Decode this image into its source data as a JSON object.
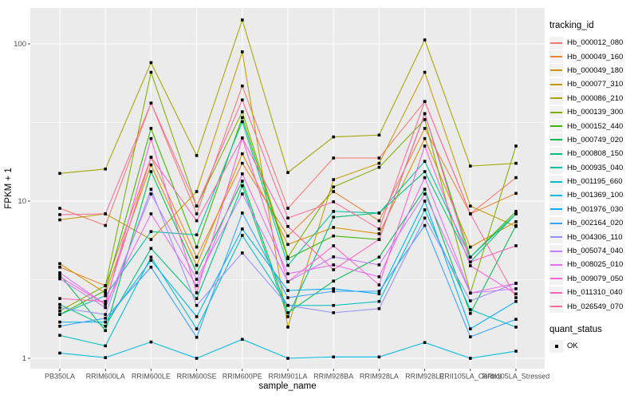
{
  "chart_data": {
    "type": "line",
    "title": "",
    "xlabel": "sample_name",
    "ylabel": "FPKM + 1",
    "y_scale": "log10",
    "ylim": [
      1,
      170
    ],
    "grid": true,
    "legend_position": "right",
    "legend_title": "tracking_id",
    "legend2": {
      "title": "quant_status",
      "items": [
        {
          "label": "OK",
          "marker": "black-square"
        }
      ]
    },
    "y_ticks": [
      {
        "v": 1,
        "label": "1"
      },
      {
        "v": 10,
        "label": "10"
      },
      {
        "v": 100,
        "label": "100"
      }
    ],
    "y_minor_ticks": [
      3.162,
      31.62
    ],
    "categories": [
      "PB350LA",
      "RRIM600LA",
      "RRIM600LE",
      "RRIM600SE",
      "RRIM600PE",
      "RRIM901LA",
      "RRIM928BA",
      "RRIM928LA",
      "RRIM928LE",
      "RRII105LA_Control",
      "RRII105LA_Stressed"
    ],
    "marker": "small-black-square",
    "series": [
      {
        "name": "Hb_000012_080",
        "color": "#F8766D",
        "values": [
          9.0,
          7.0,
          42,
          8.3,
          54,
          9.0,
          18.8,
          18.8,
          43,
          8.3,
          14.1
        ]
      },
      {
        "name": "Hb_000049_160",
        "color": "#EA8331",
        "values": [
          3.8,
          2.9,
          19,
          4.4,
          17.4,
          6.0,
          11.5,
          7.5,
          29,
          8.3,
          11.2
        ]
      },
      {
        "name": "Hb_000049_180",
        "color": "#D89000",
        "values": [
          4.0,
          2.6,
          17,
          3.9,
          20,
          5.3,
          6.8,
          6.2,
          25,
          5.1,
          7.4
        ]
      },
      {
        "name": "Hb_000077_310",
        "color": "#C49A00",
        "values": [
          7.6,
          8.3,
          5.7,
          11.5,
          89,
          1.58,
          13.7,
          17.4,
          66,
          9.3,
          6.9
        ]
      },
      {
        "name": "Hb_000086_210",
        "color": "#A3A500",
        "values": [
          15,
          16,
          76,
          19.5,
          142,
          15.2,
          25.6,
          26.3,
          106,
          16.7,
          17.4
        ]
      },
      {
        "name": "Hb_000139_300",
        "color": "#7CAE00",
        "values": [
          2.0,
          2.9,
          66,
          9.3,
          37,
          4.4,
          12.3,
          16.4,
          33,
          2.6,
          22.4
        ]
      },
      {
        "name": "Hb_000152_440",
        "color": "#39B600",
        "values": [
          1.9,
          2.7,
          29,
          5.1,
          34,
          4.3,
          6.0,
          5.7,
          36,
          4.4,
          8.6
        ]
      },
      {
        "name": "Hb_000749_020",
        "color": "#00BB4E",
        "values": [
          3.4,
          1.5,
          15.4,
          3.5,
          13.4,
          1.95,
          3.1,
          4.4,
          11.9,
          1.93,
          7.0
        ]
      },
      {
        "name": "Hb_000808_150",
        "color": "#00BF7D",
        "values": [
          2.2,
          1.6,
          5.0,
          2.4,
          12.5,
          1.84,
          7.9,
          8.4,
          15.4,
          4.1,
          8.3
        ]
      },
      {
        "name": "Hb_000935_040",
        "color": "#00C1A3",
        "values": [
          1.9,
          2.5,
          6.4,
          6.1,
          32,
          3.9,
          8.6,
          8.4,
          17.9,
          4.4,
          8.3
        ]
      },
      {
        "name": "Hb_001195_660",
        "color": "#00BFC4",
        "values": [
          1.4,
          1.2,
          4.4,
          1.54,
          6.05,
          2.17,
          2.17,
          2.3,
          8.8,
          2.04,
          1.58
        ]
      },
      {
        "name": "Hb_001369_100",
        "color": "#00BAE0",
        "values": [
          1.08,
          1.01,
          1.27,
          1.0,
          1.32,
          1.0,
          1.02,
          1.02,
          1.26,
          1.0,
          1.11
        ]
      },
      {
        "name": "Hb_001976_030",
        "color": "#00B0F6",
        "values": [
          1.7,
          1.7,
          4.2,
          1.84,
          6.65,
          2.7,
          2.77,
          2.57,
          10,
          1.54,
          2.3
        ]
      },
      {
        "name": "Hb_002164_020",
        "color": "#35A2FF",
        "values": [
          1.6,
          1.8,
          3.8,
          1.36,
          8.4,
          2.43,
          2.67,
          2.67,
          7.0,
          1.37,
          1.77
        ]
      },
      {
        "name": "Hb_004306_110",
        "color": "#9590FF",
        "values": [
          2.1,
          1.9,
          11.9,
          2.17,
          4.68,
          2.17,
          1.95,
          2.07,
          7.8,
          2.32,
          3.0
        ]
      },
      {
        "name": "Hb_005074_040",
        "color": "#C77CFF",
        "values": [
          3.2,
          2.1,
          11.1,
          3.18,
          11.1,
          3.07,
          4.42,
          3.93,
          11.1,
          2.6,
          2.77
        ]
      },
      {
        "name": "Hb_008025_010",
        "color": "#E76BF3",
        "values": [
          3.5,
          2.2,
          8.3,
          2.9,
          14.9,
          3.45,
          3.93,
          3.3,
          14.1,
          2.6,
          3.0
        ]
      },
      {
        "name": "Hb_009079_050",
        "color": "#FA62DB",
        "values": [
          3.3,
          2.2,
          25,
          2.61,
          25.2,
          3.07,
          5.2,
          2.93,
          22.4,
          3.88,
          2.57
        ]
      },
      {
        "name": "Hb_011310_040",
        "color": "#FF62BC",
        "values": [
          2.4,
          2.3,
          19,
          7.5,
          25.2,
          6.9,
          3.66,
          5.7,
          36,
          4.1,
          5.2
        ]
      },
      {
        "name": "Hb_026549_070",
        "color": "#FF6A98",
        "values": [
          8.2,
          8.3,
          42,
          9.3,
          44,
          7.8,
          9.9,
          6.65,
          43,
          8.3,
          2.43
        ]
      }
    ],
    "panel_color": "#EBEBEB",
    "gridline_color": "#FFFFFF",
    "tick_text_color": "#4D4D4D",
    "marker_color": "#000000"
  }
}
